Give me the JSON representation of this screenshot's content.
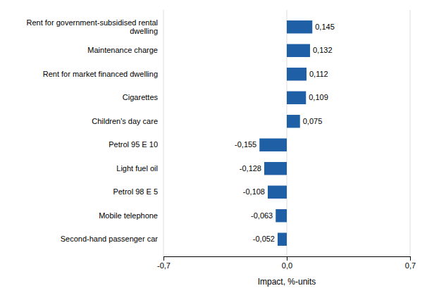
{
  "chart_data": {
    "type": "bar",
    "orientation": "horizontal",
    "categories": [
      "Second-hand passenger car",
      "Mobile telephone",
      "Petrol 98 E 5",
      "Light fuel oil",
      "Petrol 95 E 10",
      "Children's day care",
      "Cigarettes",
      "Rent for market financed dwelling",
      "Maintenance charge",
      "Rent for government-subsidised rental\ndwelling"
    ],
    "values": [
      -0.052,
      -0.063,
      -0.108,
      -0.128,
      -0.155,
      0.075,
      0.109,
      0.112,
      0.132,
      0.145
    ],
    "value_labels": [
      "-0,052",
      "-0,063",
      "-0,108",
      "-0,128",
      "-0,155",
      "0,075",
      "0,109",
      "0,112",
      "0,132",
      "0,145"
    ],
    "data_labels": true,
    "color": "#1F5FA6",
    "xlabel": "Impact, %-units",
    "xlim": [
      -0.7,
      0.7
    ],
    "xticks": [
      {
        "value": -0.7,
        "label": "-0,7"
      },
      {
        "value": 0.0,
        "label": "0,0"
      },
      {
        "value": 0.7,
        "label": "0,7"
      }
    ],
    "grid": true
  }
}
